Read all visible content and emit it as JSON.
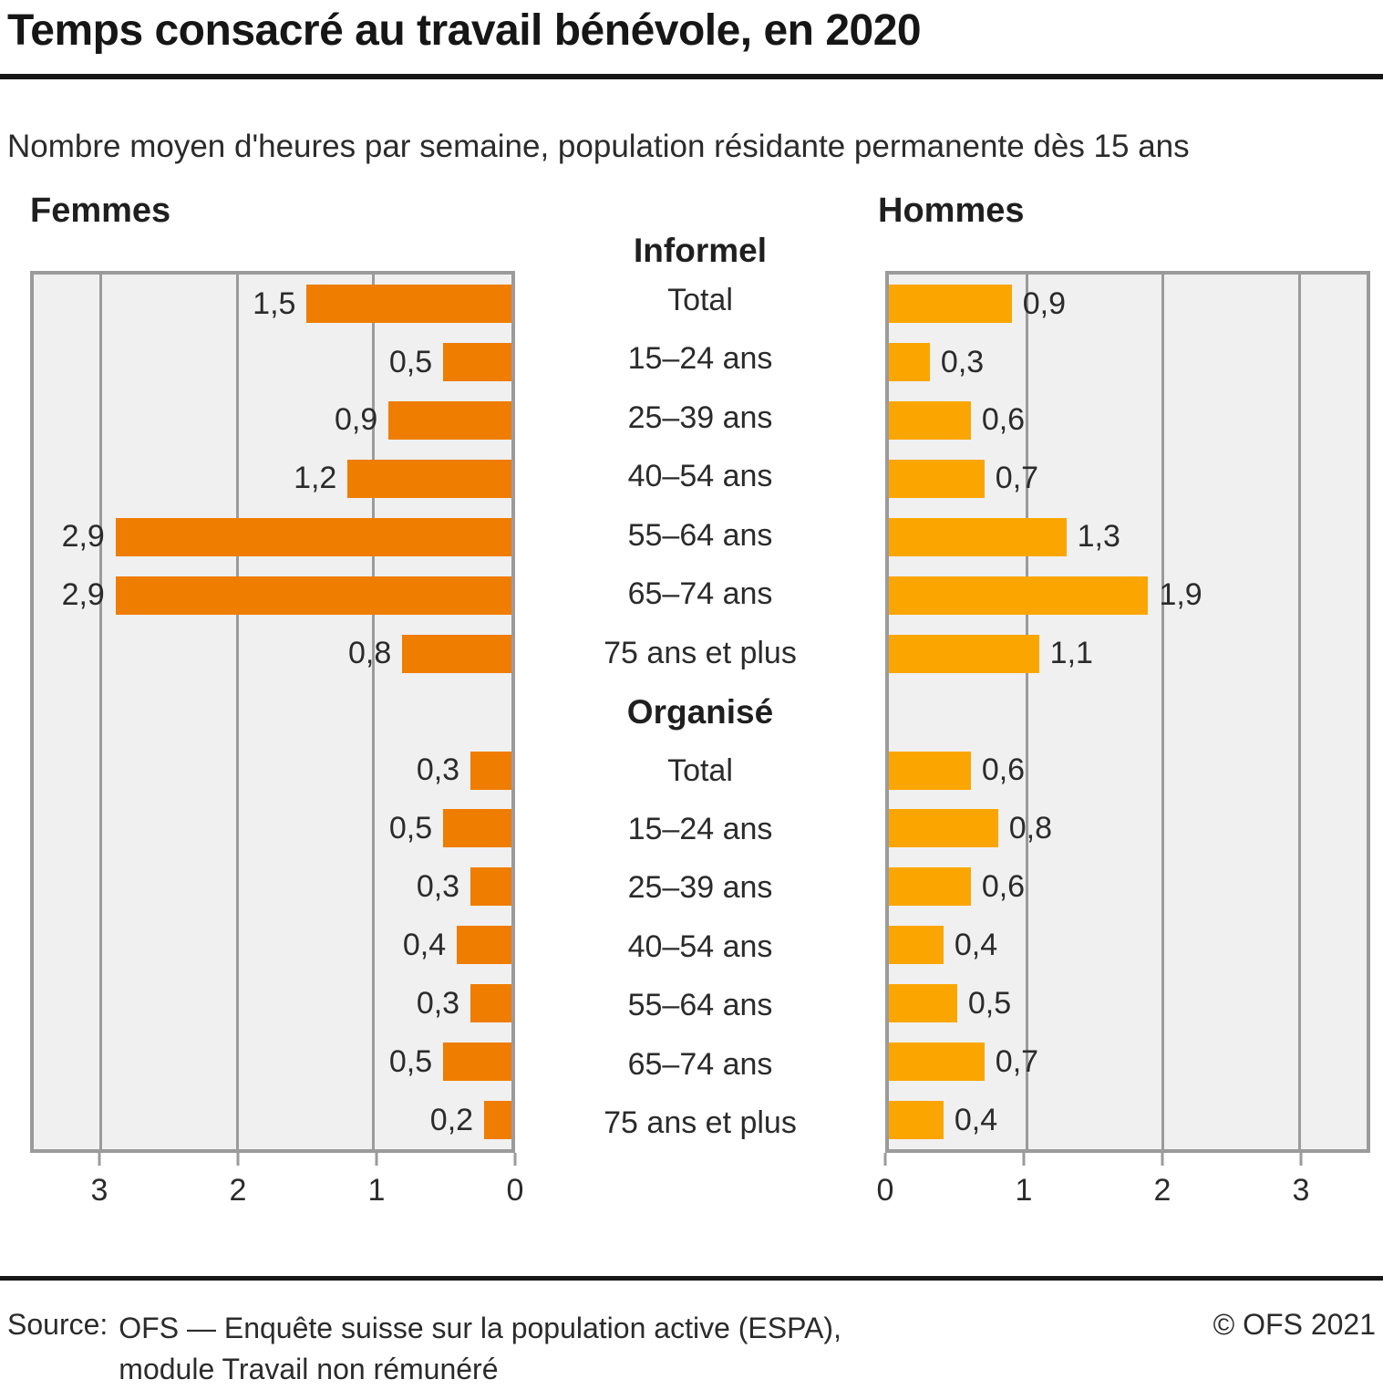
{
  "title": "Temps consacré au travail bénévole, en 2020",
  "subtitle": "Nombre moyen d'heures par semaine, population résidante permanente dès 15 ans",
  "footer": {
    "source_label": "Source:",
    "source_line1": "OFS — Enquête suisse sur la population active (ESPA),",
    "source_line2": "module Travail non rémunéré",
    "copyright": "© OFS 2021"
  },
  "chart_data": {
    "type": "bar",
    "orientation": "horizontal-diverging",
    "left_header": "Femmes",
    "right_header": "Hommes",
    "grid": "on",
    "axis": {
      "min": 0,
      "max": 3.5,
      "ticks": [
        0,
        1,
        2,
        3
      ]
    },
    "colors": {
      "femmes_bar": "#ef7d00",
      "hommes_bar": "#fba600",
      "plot_background": "#f0f0f0",
      "gridline": "#9b9b9b"
    },
    "sections": [
      {
        "label": "Informel",
        "rows": [
          {
            "label": "Total",
            "femmes": 1.5,
            "femmes_label": "1,5",
            "hommes": 0.9,
            "hommes_label": "0,9"
          },
          {
            "label": "15–24 ans",
            "femmes": 0.5,
            "femmes_label": "0,5",
            "hommes": 0.3,
            "hommes_label": "0,3"
          },
          {
            "label": "25–39 ans",
            "femmes": 0.9,
            "femmes_label": "0,9",
            "hommes": 0.6,
            "hommes_label": "0,6"
          },
          {
            "label": "40–54 ans",
            "femmes": 1.2,
            "femmes_label": "1,2",
            "hommes": 0.7,
            "hommes_label": "0,7"
          },
          {
            "label": "55–64 ans",
            "femmes": 2.9,
            "femmes_label": "2,9",
            "hommes": 1.3,
            "hommes_label": "1,3"
          },
          {
            "label": "65–74 ans",
            "femmes": 2.9,
            "femmes_label": "2,9",
            "hommes": 1.9,
            "hommes_label": "1,9"
          },
          {
            "label": "75 ans et plus",
            "femmes": 0.8,
            "femmes_label": "0,8",
            "hommes": 1.1,
            "hommes_label": "1,1"
          }
        ]
      },
      {
        "label": "Organisé",
        "rows": [
          {
            "label": "Total",
            "femmes": 0.3,
            "femmes_label": "0,3",
            "hommes": 0.6,
            "hommes_label": "0,6"
          },
          {
            "label": "15–24 ans",
            "femmes": 0.5,
            "femmes_label": "0,5",
            "hommes": 0.8,
            "hommes_label": "0,8"
          },
          {
            "label": "25–39 ans",
            "femmes": 0.3,
            "femmes_label": "0,3",
            "hommes": 0.6,
            "hommes_label": "0,6"
          },
          {
            "label": "40–54 ans",
            "femmes": 0.4,
            "femmes_label": "0,4",
            "hommes": 0.4,
            "hommes_label": "0,4"
          },
          {
            "label": "55–64 ans",
            "femmes": 0.3,
            "femmes_label": "0,3",
            "hommes": 0.5,
            "hommes_label": "0,5"
          },
          {
            "label": "65–74 ans",
            "femmes": 0.5,
            "femmes_label": "0,5",
            "hommes": 0.7,
            "hommes_label": "0,7"
          },
          {
            "label": "75 ans et plus",
            "femmes": 0.2,
            "femmes_label": "0,2",
            "hommes": 0.4,
            "hommes_label": "0,4"
          }
        ]
      }
    ]
  }
}
